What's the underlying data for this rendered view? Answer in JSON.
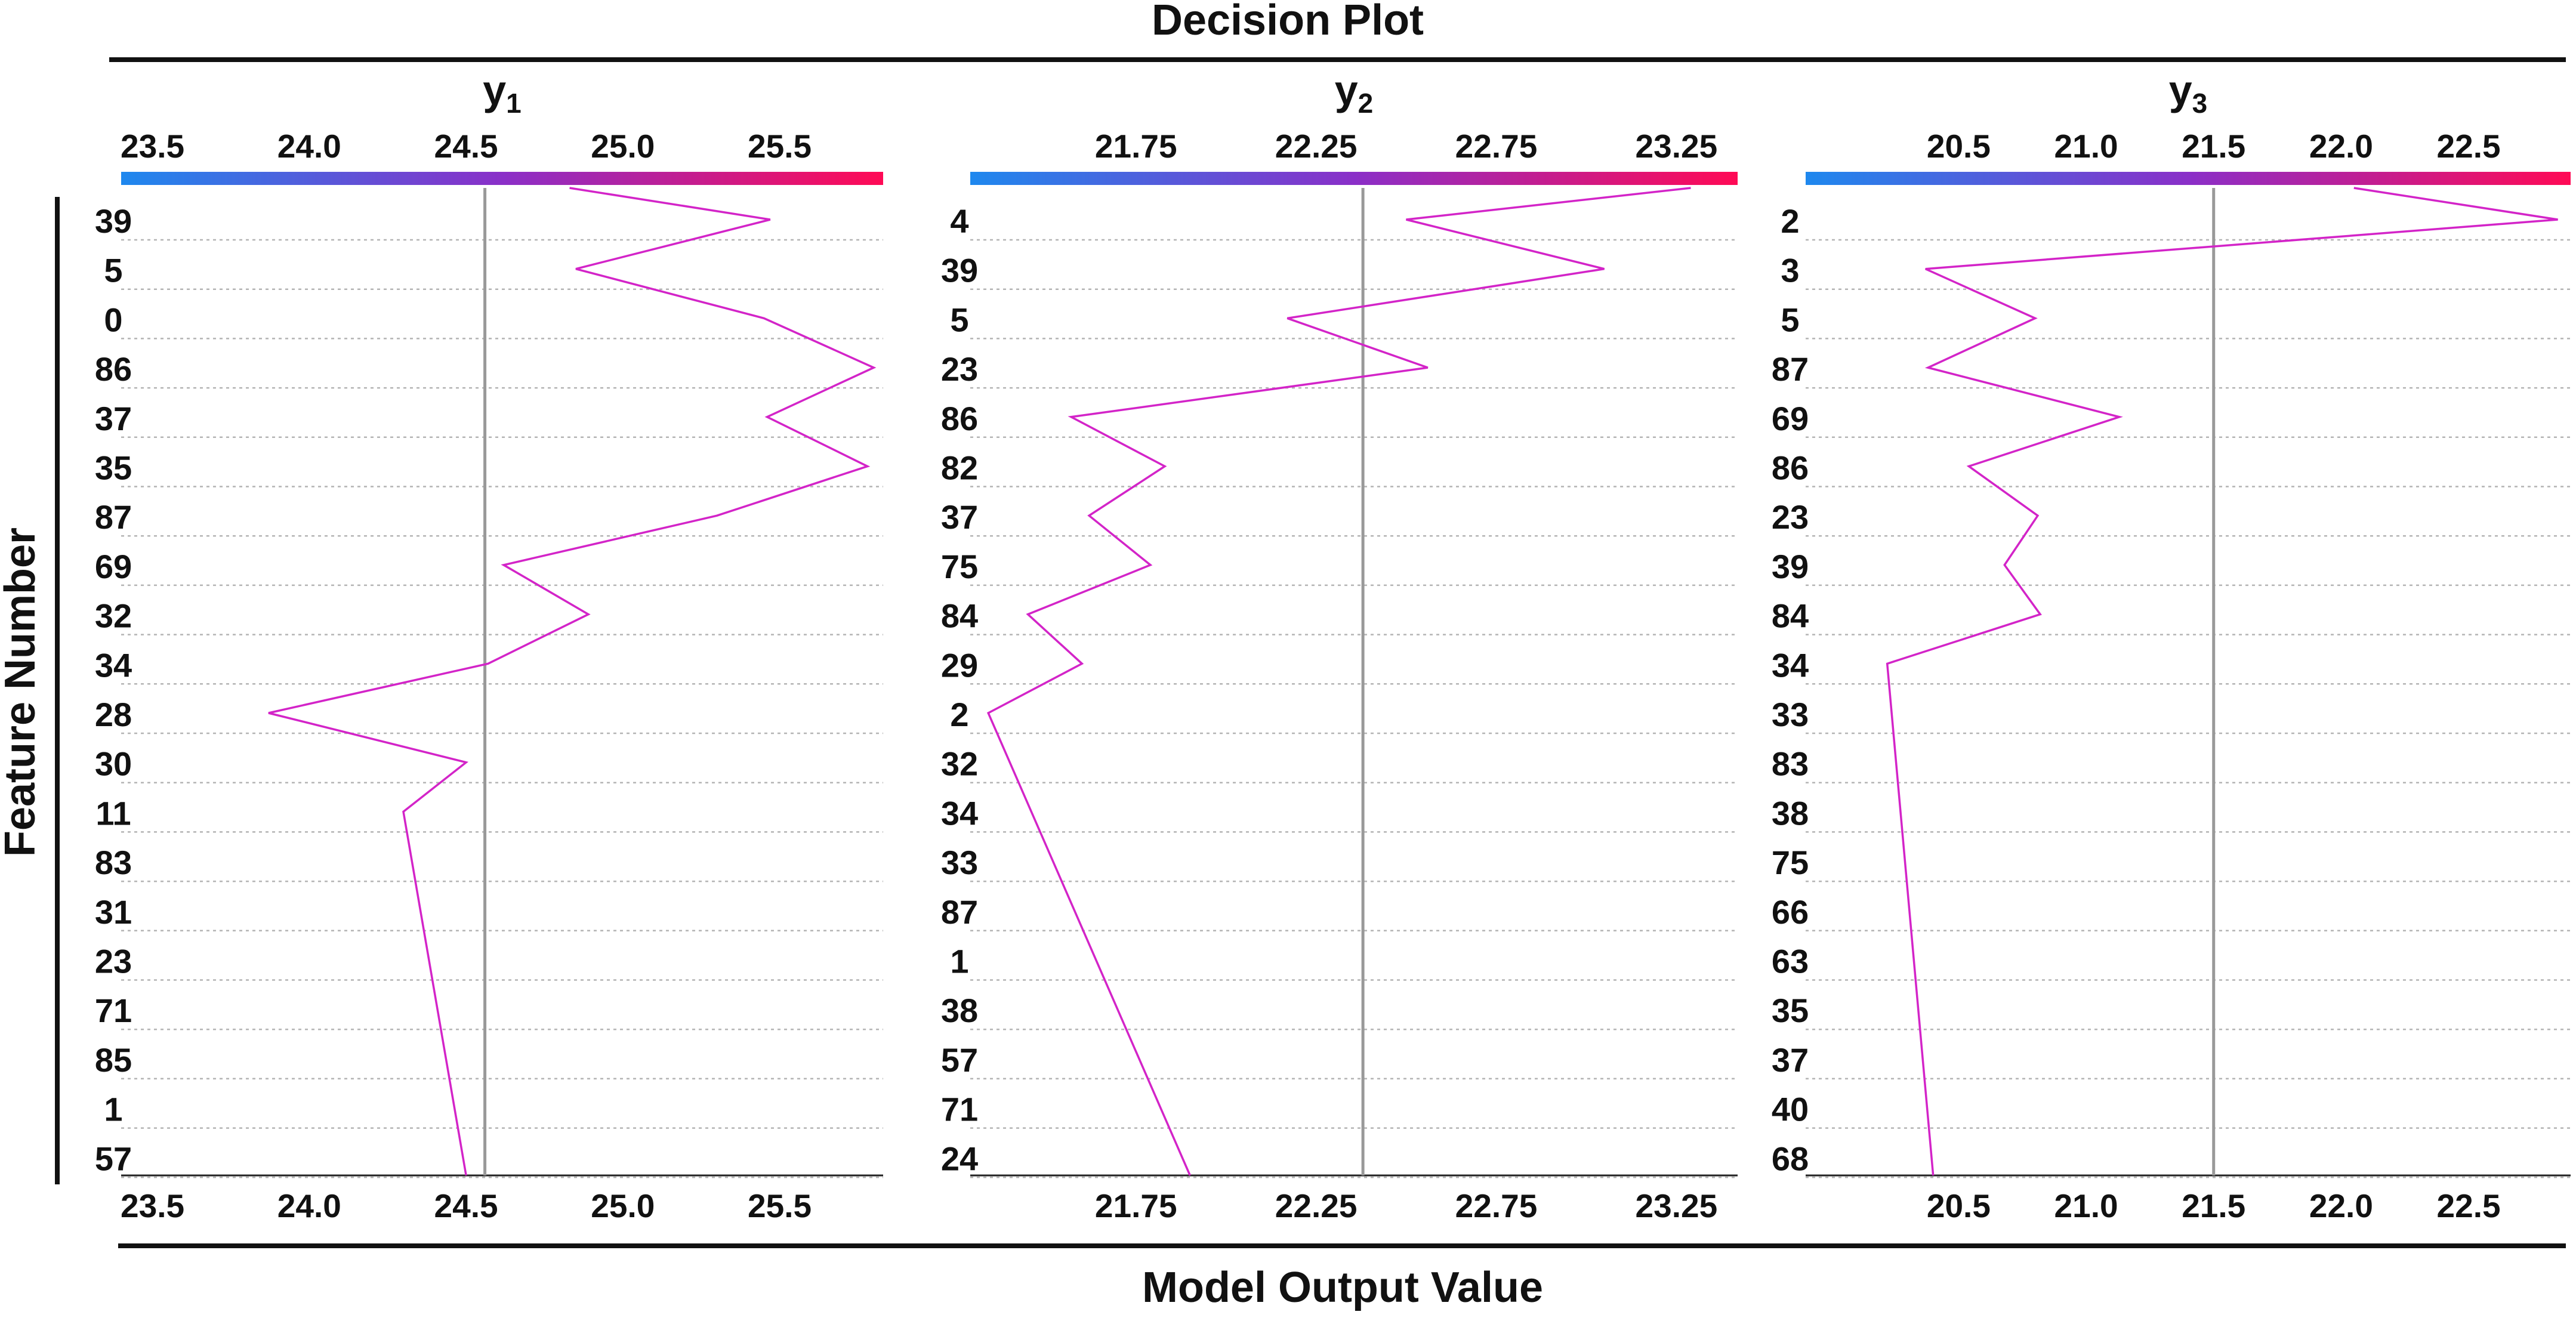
{
  "page_title": "Decision Plot",
  "footer_title": "Model Output Value",
  "y_axis_label": "Feature Number",
  "colors": {
    "line": "#d324c8",
    "colorbar_start": "#1e88ee",
    "colorbar_mid": "#8a2fc8",
    "colorbar_end": "#ff0a55",
    "grid": "#b4b4b4",
    "base_line": "#999999"
  },
  "chart_data": [
    {
      "type": "line",
      "title_main": "y",
      "title_sub": "1",
      "xlim": [
        23.4,
        25.83
      ],
      "xticks": [
        23.5,
        24.0,
        24.5,
        25.0,
        25.5
      ],
      "xtick_labels": [
        "23.5",
        "24.0",
        "24.5",
        "25.0",
        "25.5"
      ],
      "base_value": 24.56,
      "features": [
        "39",
        "5",
        "0",
        "86",
        "37",
        "35",
        "87",
        "69",
        "32",
        "34",
        "28",
        "30",
        "11",
        "83",
        "31",
        "23",
        "71",
        "85",
        "1",
        "57"
      ],
      "path": [
        24.83,
        25.47,
        24.85,
        25.45,
        25.8,
        25.46,
        25.78,
        25.3,
        24.62,
        24.89,
        24.57,
        23.87,
        24.5,
        24.3,
        24.5
      ]
    },
    {
      "type": "line",
      "title_main": "y",
      "title_sub": "2",
      "xlim": [
        21.29,
        23.42
      ],
      "xticks": [
        21.75,
        22.25,
        22.75,
        23.25
      ],
      "xtick_labels": [
        "21.75",
        "22.25",
        "22.75",
        "23.25"
      ],
      "base_value": 22.38,
      "features": [
        "4",
        "39",
        "5",
        "23",
        "86",
        "82",
        "37",
        "75",
        "84",
        "29",
        "2",
        "32",
        "34",
        "33",
        "87",
        "1",
        "38",
        "57",
        "71",
        "24"
      ],
      "path": [
        23.29,
        22.5,
        23.05,
        22.17,
        22.56,
        21.57,
        21.83,
        21.62,
        21.79,
        21.45,
        21.6,
        21.34,
        21.9
      ]
    },
    {
      "type": "line",
      "title_main": "y",
      "title_sub": "3",
      "xlim": [
        19.9,
        22.9
      ],
      "xticks": [
        20.5,
        21.0,
        21.5,
        22.0,
        22.5
      ],
      "xtick_labels": [
        "20.5",
        "21.0",
        "21.5",
        "22.0",
        "22.5"
      ],
      "base_value": 21.5,
      "features": [
        "2",
        "3",
        "5",
        "87",
        "69",
        "86",
        "23",
        "39",
        "84",
        "34",
        "33",
        "83",
        "38",
        "75",
        "66",
        "63",
        "35",
        "37",
        "40",
        "68"
      ],
      "path": [
        22.05,
        22.85,
        20.37,
        20.8,
        20.38,
        21.13,
        20.54,
        20.81,
        20.68,
        20.82,
        20.22,
        20.4
      ]
    }
  ]
}
